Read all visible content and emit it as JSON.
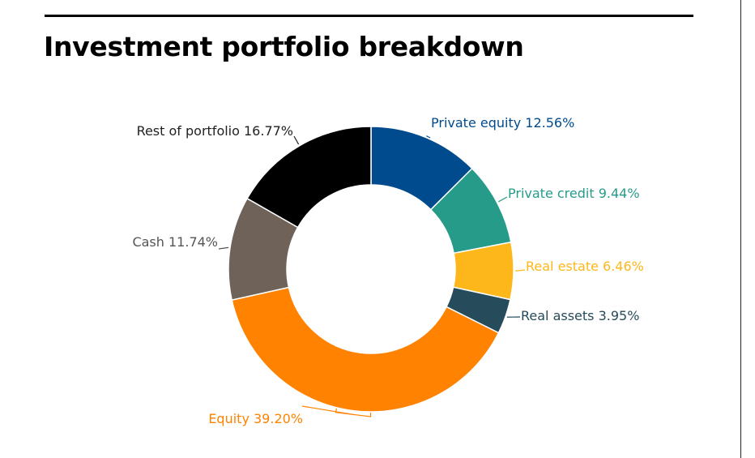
{
  "chart_data": {
    "type": "pie",
    "title": "Investment portfolio breakdown",
    "slices": [
      {
        "name": "Private equity",
        "value": 12.56,
        "label": "Private equity  12.56%",
        "color": "#004B8D",
        "label_color": "#004B8D"
      },
      {
        "name": "Private credit",
        "value": 9.44,
        "label": "Private credit  9.44%",
        "color": "#269B8A",
        "label_color": "#269B8A"
      },
      {
        "name": "Real estate",
        "value": 6.46,
        "label": "Real estate  6.46%",
        "color": "#FDB71A",
        "label_color": "#FDB71A"
      },
      {
        "name": "Real assets",
        "value": 3.95,
        "label": "Real assets  3.95%",
        "color": "#264B5A",
        "label_color": "#264B5A"
      },
      {
        "name": "Equity",
        "value": 39.2,
        "label": "Equity 39.20%",
        "color": "#FF8200",
        "label_color": "#FF8200"
      },
      {
        "name": "Cash",
        "value": 11.74,
        "label": "Cash  11.74%",
        "color": "#6E6259",
        "label_color": "#555555"
      },
      {
        "name": "Rest of portfolio",
        "value": 16.77,
        "label": "Rest of portfolio 16.77%",
        "color": "#000000",
        "label_color": "#222222"
      }
    ],
    "donut": true,
    "legend": "none"
  }
}
